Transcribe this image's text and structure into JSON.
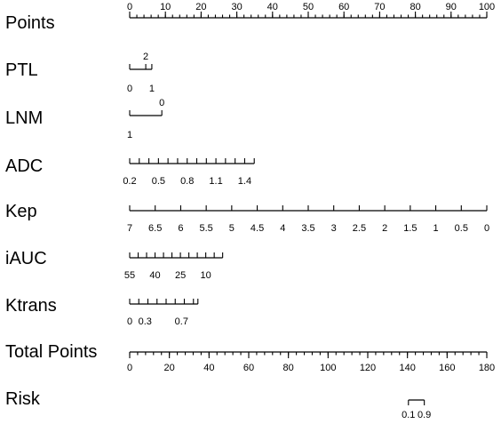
{
  "chart_data": {
    "type": "nomogram",
    "title": "",
    "rows": [
      {
        "name": "Points",
        "scale": "points",
        "min": 0,
        "max": 100,
        "labels": [
          "0",
          "10",
          "20",
          "30",
          "40",
          "50",
          "60",
          "70",
          "80",
          "90",
          "100"
        ],
        "label_values": [
          0,
          10,
          20,
          30,
          40,
          50,
          60,
          70,
          80,
          90,
          100
        ],
        "minor_step": 2,
        "label_side": "above"
      },
      {
        "name": "PTL",
        "type": "categorical",
        "categories": [
          {
            "label": "0",
            "points": 0,
            "side": "below"
          },
          {
            "label": "2",
            "points": 4.5,
            "side": "above"
          },
          {
            "label": "1",
            "points": 6.2,
            "side": "below"
          }
        ]
      },
      {
        "name": "LNM",
        "type": "categorical",
        "categories": [
          {
            "label": "1",
            "points": 0,
            "side": "below"
          },
          {
            "label": "0",
            "points": 9,
            "side": "above"
          }
        ]
      },
      {
        "name": "ADC",
        "type": "continuous",
        "labels": [
          "0.2",
          "0.5",
          "0.8",
          "1.1",
          "1.4"
        ],
        "label_points": [
          0,
          8.05,
          16.1,
          24.15,
          32.2
        ],
        "minor_points": [
          0,
          2.68,
          5.37,
          8.05,
          10.73,
          13.42,
          16.1,
          18.78,
          21.47,
          24.15,
          26.83,
          29.52,
          32.2,
          34.88
        ],
        "label_side": "below"
      },
      {
        "name": "Kep",
        "type": "continuous",
        "labels": [
          "7",
          "6.5",
          "6",
          "5.5",
          "5",
          "4.5",
          "4",
          "3.5",
          "3",
          "2.5",
          "2",
          "1.5",
          "1",
          "0.5",
          "0"
        ],
        "label_points": [
          0,
          7.14,
          14.29,
          21.43,
          28.57,
          35.71,
          42.86,
          50,
          57.14,
          64.29,
          71.43,
          78.57,
          85.71,
          92.86,
          100
        ],
        "minor_points": [
          0,
          7.14,
          14.29,
          21.43,
          28.57,
          35.71,
          42.86,
          50,
          57.14,
          64.29,
          71.43,
          78.57,
          85.71,
          92.86,
          100
        ],
        "label_side": "below"
      },
      {
        "name": "iAUC",
        "type": "continuous",
        "labels": [
          "55",
          "40",
          "25",
          "10"
        ],
        "label_points": [
          0,
          7.1,
          14.2,
          21.3
        ],
        "minor_points": [
          0,
          2.37,
          4.73,
          7.1,
          9.47,
          11.83,
          14.2,
          16.57,
          18.93,
          21.3,
          23.67,
          26.03
        ],
        "label_side": "below"
      },
      {
        "name": "Ktrans",
        "type": "continuous",
        "labels": [
          "0",
          "0.3",
          "0.7"
        ],
        "label_points": [
          0,
          4.3,
          14.5
        ],
        "minor_points": [
          0,
          2.55,
          5.1,
          7.65,
          10.2,
          12.75,
          15.3,
          17.85,
          19.1
        ],
        "label_side": "below"
      },
      {
        "name": "Total Points",
        "scale": "total",
        "min": 0,
        "max": 180,
        "labels": [
          "0",
          "20",
          "40",
          "60",
          "80",
          "100",
          "120",
          "140",
          "160",
          "180"
        ],
        "label_values": [
          0,
          20,
          40,
          60,
          80,
          100,
          120,
          140,
          160,
          180
        ],
        "minor_step": 4,
        "label_side": "below"
      },
      {
        "name": "Risk",
        "type": "risk",
        "labels": [
          "0.1",
          "0.9"
        ],
        "label_total_points": [
          140.5,
          148.5
        ],
        "label_side": "below"
      }
    ]
  }
}
